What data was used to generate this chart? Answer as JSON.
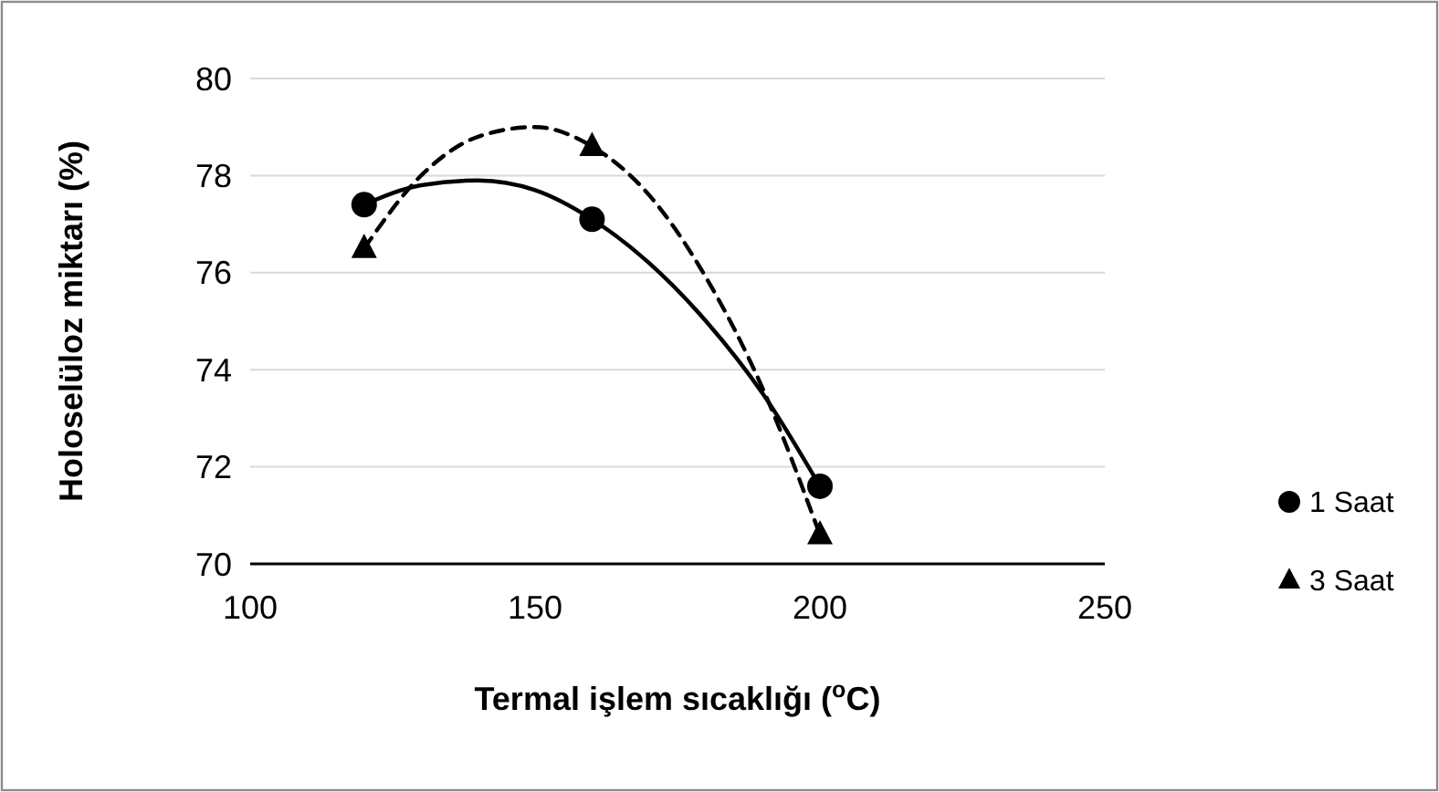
{
  "chart_data": {
    "type": "scatter",
    "xlabel": "Termal işlem sıcaklığı ($^{o}$C)",
    "ylabel": "Holoselüloz miktarı (%)",
    "xlim": [
      100,
      250
    ],
    "xticks": [
      100,
      150,
      200,
      250
    ],
    "ylim": [
      70,
      80
    ],
    "yticks": [
      70,
      72,
      74,
      76,
      78,
      80
    ],
    "grid": "y",
    "legend": "right",
    "series": [
      {
        "name": "1 Saat",
        "marker": "circle",
        "color": "#000000",
        "x": [
          120,
          160,
          200
        ],
        "values": [
          77.4,
          77.1,
          71.6
        ]
      },
      {
        "name": "3 Saat",
        "marker": "triangle",
        "color": "#000000",
        "x": [
          120,
          160,
          200
        ],
        "values": [
          76.5,
          78.6,
          70.6
        ]
      },
      {
        "type": "line",
        "line_style": "solid",
        "color": "#000000",
        "x": [
          120,
          130,
          140,
          150,
          160,
          170,
          180,
          190,
          200
        ],
        "values": [
          77.4,
          77.8,
          77.9,
          77.7,
          77.1,
          76.2,
          75.0,
          73.5,
          71.6
        ]
      },
      {
        "type": "line",
        "line_style": "dashed",
        "color": "#000000",
        "x": [
          120,
          130,
          140,
          150,
          160,
          170,
          180,
          190,
          200
        ],
        "values": [
          76.5,
          78.0,
          78.8,
          79.0,
          78.6,
          77.6,
          75.9,
          73.6,
          70.6
        ]
      }
    ]
  }
}
